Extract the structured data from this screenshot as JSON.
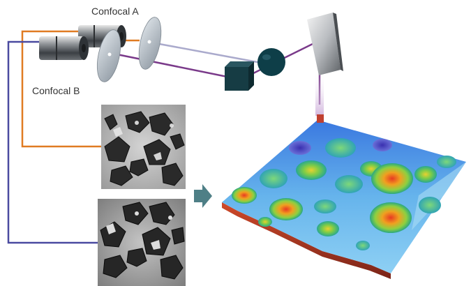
{
  "labels": {
    "confocal_a": "Confocal A",
    "confocal_b": "Confocal B"
  },
  "colors": {
    "path_a": "#e07b22",
    "path_b": "#4a4aa0",
    "beam_a": "#aaaacc",
    "beam_b": "#7a3a8a",
    "arrow": "#4e7f86",
    "cube": "#163c44",
    "lens": "#0e3e48",
    "disk": "#a9b2ba",
    "camera": "#555a60"
  },
  "icons": {
    "camera_a": "cylinder-camera-icon",
    "camera_b": "cylinder-camera-icon",
    "arrow": "arrow-right-icon"
  }
}
